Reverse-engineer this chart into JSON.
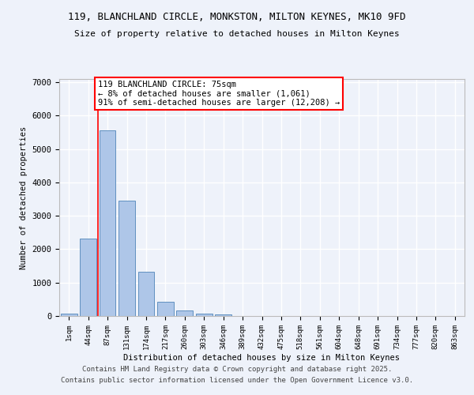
{
  "title_line1": "119, BLANCHLAND CIRCLE, MONKSTON, MILTON KEYNES, MK10 9FD",
  "title_line2": "Size of property relative to detached houses in Milton Keynes",
  "xlabel": "Distribution of detached houses by size in Milton Keynes",
  "ylabel": "Number of detached properties",
  "bar_color": "#aec6e8",
  "bar_edge_color": "#6090c0",
  "background_color": "#eef2fa",
  "grid_color": "#ffffff",
  "categories": [
    "1sqm",
    "44sqm",
    "87sqm",
    "131sqm",
    "174sqm",
    "217sqm",
    "260sqm",
    "303sqm",
    "346sqm",
    "389sqm",
    "432sqm",
    "475sqm",
    "518sqm",
    "561sqm",
    "604sqm",
    "648sqm",
    "691sqm",
    "734sqm",
    "777sqm",
    "820sqm",
    "863sqm"
  ],
  "values": [
    75,
    2320,
    5560,
    3450,
    1330,
    430,
    170,
    80,
    50,
    0,
    0,
    0,
    0,
    0,
    0,
    0,
    0,
    0,
    0,
    0,
    0
  ],
  "vline_position": 1.5,
  "annotation_text": "119 BLANCHLAND CIRCLE: 75sqm\n← 8% of detached houses are smaller (1,061)\n91% of semi-detached houses are larger (12,208) →",
  "annotation_box_color": "white",
  "annotation_box_edge_color": "red",
  "vline_color": "red",
  "ylim": [
    0,
    7100
  ],
  "yticks": [
    0,
    1000,
    2000,
    3000,
    4000,
    5000,
    6000,
    7000
  ],
  "footer_line1": "Contains HM Land Registry data © Crown copyright and database right 2025.",
  "footer_line2": "Contains public sector information licensed under the Open Government Licence v3.0."
}
